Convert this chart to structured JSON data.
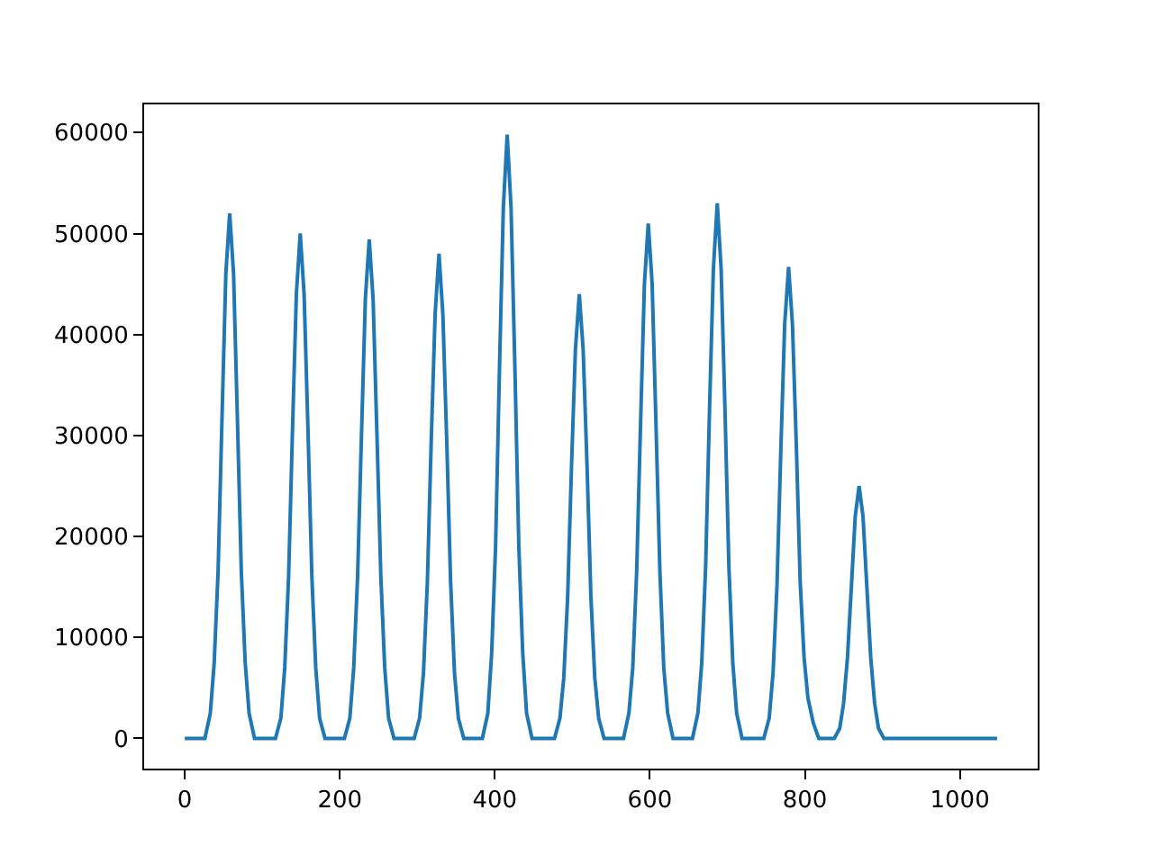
{
  "chart_data": {
    "type": "line",
    "color": "#1f77b4",
    "x": [
      0,
      26,
      33,
      38,
      43,
      48,
      53,
      58,
      63,
      68,
      73,
      78,
      83,
      90,
      117,
      124,
      129,
      134,
      139,
      144,
      149,
      154,
      159,
      164,
      169,
      174,
      181,
      206,
      213,
      218,
      223,
      228,
      233,
      238,
      243,
      248,
      253,
      258,
      263,
      270,
      296,
      303,
      308,
      313,
      318,
      323,
      328,
      333,
      338,
      343,
      348,
      353,
      360,
      384,
      391,
      396,
      401,
      406,
      411,
      416,
      421,
      426,
      431,
      436,
      441,
      448,
      477,
      484,
      489,
      494,
      499,
      504,
      509,
      514,
      519,
      524,
      529,
      534,
      541,
      566,
      573,
      578,
      583,
      588,
      593,
      598,
      603,
      608,
      613,
      618,
      623,
      630,
      655,
      662,
      667,
      672,
      677,
      682,
      687,
      692,
      697,
      702,
      707,
      712,
      719,
      747,
      754,
      759,
      764,
      769,
      774,
      779,
      784,
      789,
      794,
      799,
      804,
      811,
      818,
      838,
      845,
      850,
      855,
      860,
      865,
      870,
      875,
      880,
      885,
      890,
      895,
      902,
      1048
    ],
    "values": [
      0,
      0,
      2500,
      7500,
      16500,
      31500,
      46000,
      52000,
      46000,
      31500,
      16500,
      7500,
      2500,
      0,
      0,
      2000,
      7000,
      16000,
      30500,
      44000,
      50000,
      44000,
      30500,
      16000,
      7000,
      2000,
      0,
      0,
      2000,
      7000,
      16000,
      30000,
      43500,
      49400,
      43500,
      30000,
      16000,
      7000,
      2000,
      0,
      0,
      2000,
      6500,
      15500,
      29500,
      42000,
      48000,
      42000,
      29500,
      15500,
      6500,
      2000,
      0,
      0,
      2500,
      8500,
      19000,
      36500,
      52500,
      59800,
      52500,
      36500,
      19000,
      8500,
      2500,
      0,
      0,
      2000,
      6000,
      14000,
      27000,
      38500,
      44000,
      38500,
      27000,
      14000,
      6000,
      2000,
      0,
      0,
      2500,
      7000,
      16500,
      31000,
      45000,
      51000,
      45000,
      31000,
      16500,
      7000,
      2500,
      0,
      0,
      2500,
      7500,
      17000,
      32500,
      46500,
      53000,
      46500,
      32500,
      17000,
      7500,
      2500,
      0,
      0,
      2000,
      6500,
      15000,
      28500,
      41000,
      46700,
      41000,
      29000,
      15500,
      8000,
      4000,
      1500,
      0,
      0,
      1000,
      3500,
      8000,
      15000,
      22000,
      25000,
      22000,
      15000,
      8000,
      3500,
      1000,
      0,
      0
    ],
    "xlim": [
      -52.4,
      1100.4
    ],
    "ylim": [
      -2990,
      62790
    ],
    "xticks": [
      0,
      200,
      400,
      600,
      800,
      1000
    ],
    "yticks": [
      0,
      10000,
      20000,
      30000,
      40000,
      50000,
      60000
    ],
    "grid": false
  }
}
